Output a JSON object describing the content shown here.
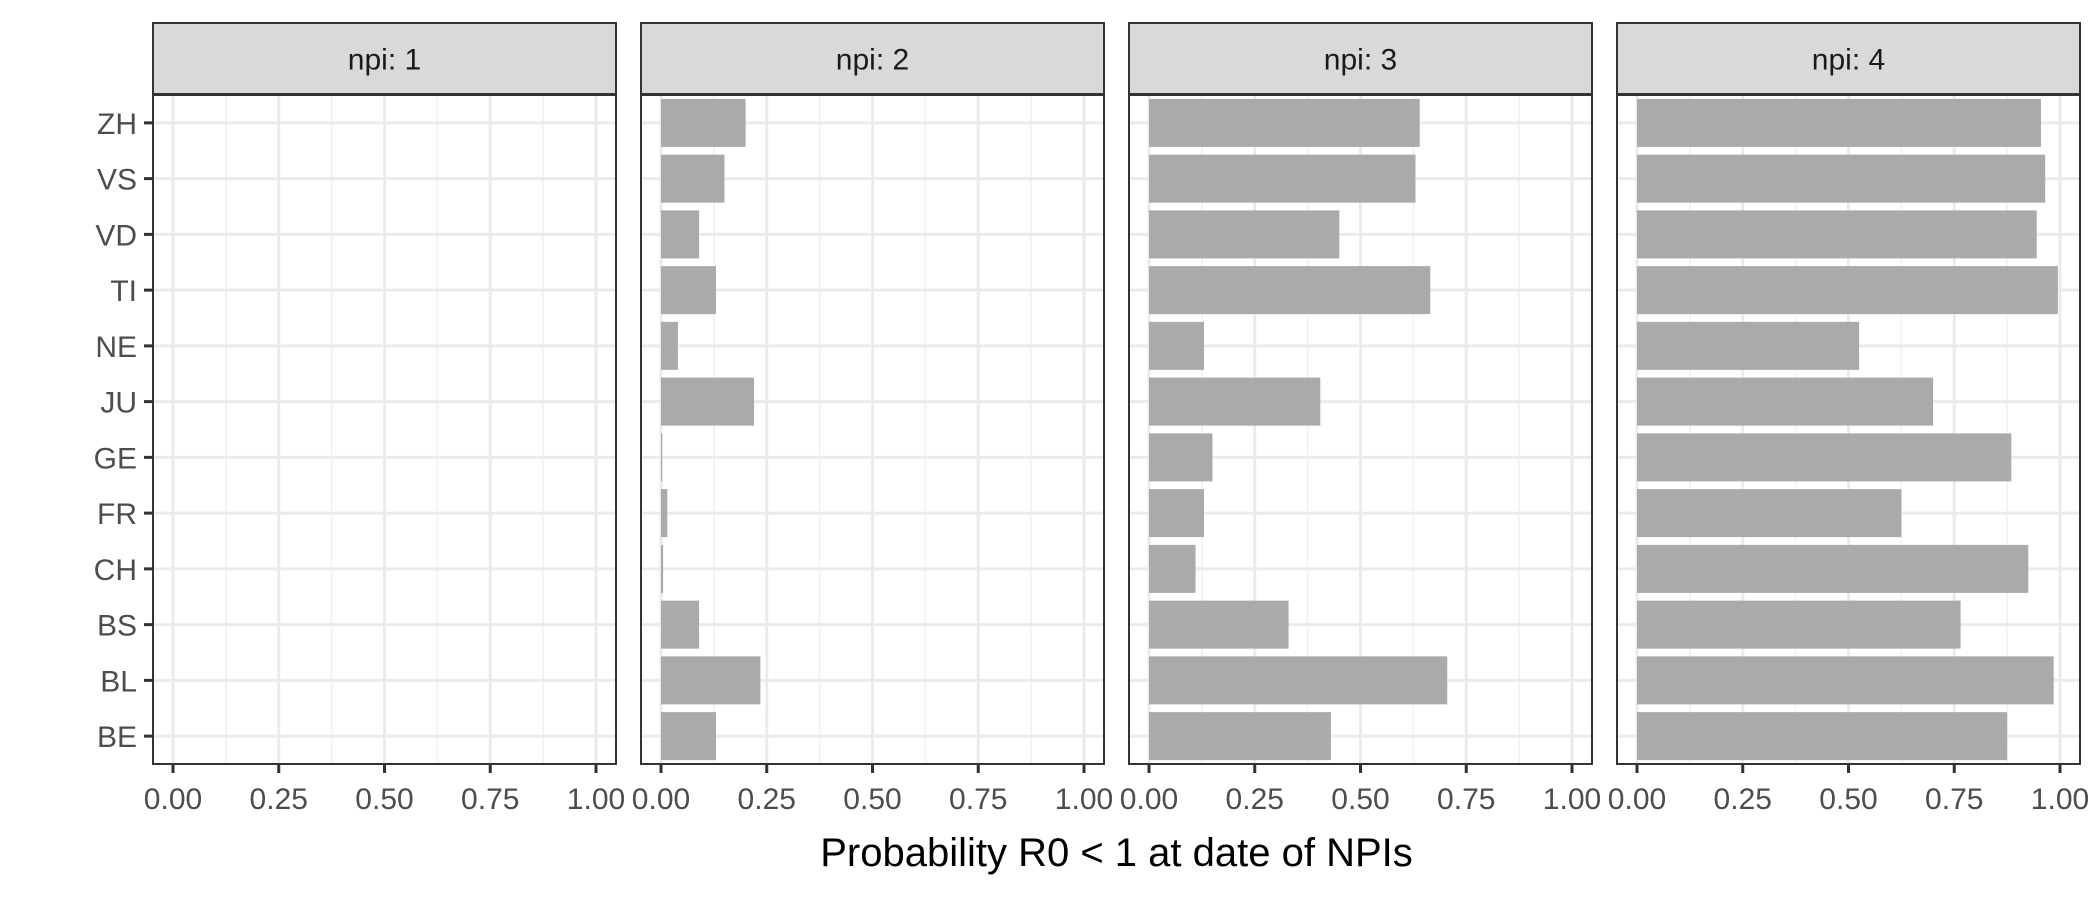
{
  "chart_data": {
    "type": "bar",
    "orientation": "horizontal",
    "facet_label_prefix": "npi: ",
    "xlabel": "Probability R0 < 1 at date of NPIs",
    "ylabel": "",
    "xlim": [
      0,
      1
    ],
    "x_ticks": [
      "0.00",
      "0.25",
      "0.50",
      "0.75",
      "1.00"
    ],
    "x_tick_values": [
      0,
      0.25,
      0.5,
      0.75,
      1
    ],
    "categories": [
      "ZH",
      "VS",
      "VD",
      "TI",
      "NE",
      "JU",
      "GE",
      "FR",
      "CH",
      "BS",
      "BL",
      "BE"
    ],
    "grid": true,
    "colors": {
      "bar": "#aaaaaa",
      "strip": "#d9d9d9",
      "grid_major": "#ebebeb",
      "grid_minor": "#f3f3f3",
      "border": "#333333"
    },
    "facets": [
      {
        "npi": "1",
        "values": [
          0,
          0,
          0,
          0,
          0,
          0,
          0,
          0,
          0,
          0,
          0,
          0
        ]
      },
      {
        "npi": "2",
        "values": [
          0.2,
          0.15,
          0.09,
          0.13,
          0.04,
          0.22,
          0.003,
          0.015,
          0.005,
          0.09,
          0.235,
          0.13
        ]
      },
      {
        "npi": "3",
        "values": [
          0.64,
          0.63,
          0.45,
          0.665,
          0.13,
          0.405,
          0.15,
          0.13,
          0.11,
          0.33,
          0.705,
          0.43
        ]
      },
      {
        "npi": "4",
        "values": [
          0.955,
          0.965,
          0.945,
          0.995,
          0.525,
          0.7,
          0.885,
          0.625,
          0.925,
          0.765,
          0.985,
          0.875
        ]
      }
    ]
  }
}
